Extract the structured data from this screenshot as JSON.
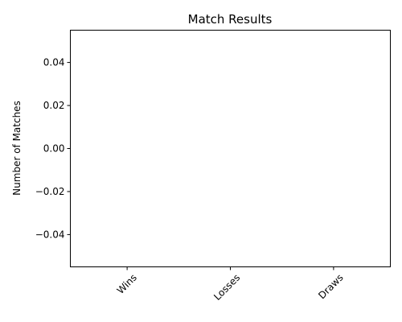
{
  "chart_data": {
    "type": "bar",
    "title": "Match Results",
    "xlabel": "",
    "ylabel": "Number of Matches",
    "categories": [
      "Wins",
      "Losses",
      "Draws"
    ],
    "values": [
      0,
      0,
      0
    ],
    "ylim": [
      -0.055,
      0.055
    ],
    "yticks": [
      -0.04,
      -0.02,
      0.0,
      0.02,
      0.04
    ],
    "ytick_labels": [
      "−0.04",
      "−0.02",
      "0.00",
      "0.02",
      "0.04"
    ],
    "grid": false,
    "bar_color": "#1f77b4"
  }
}
